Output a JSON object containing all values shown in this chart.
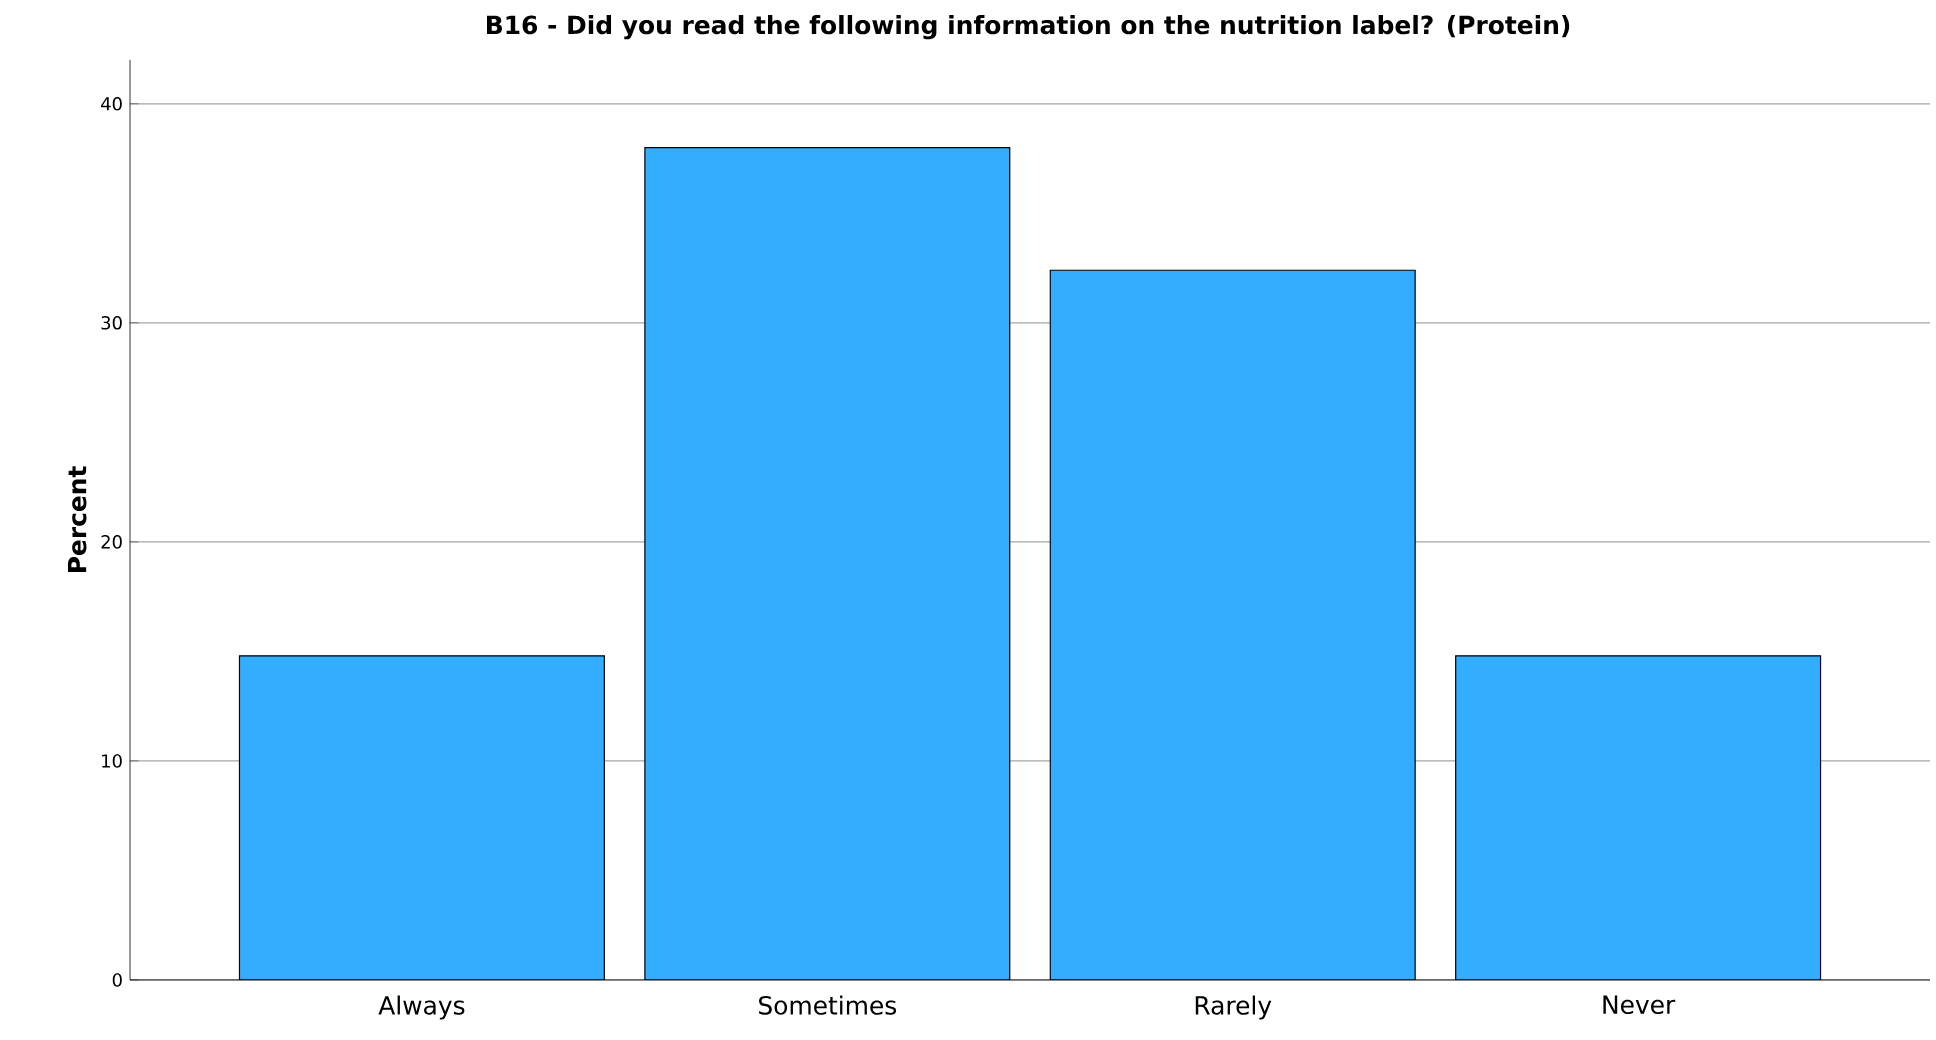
{
  "chart_data": {
    "type": "bar",
    "title": "B16 - Did you read the following information on the nutrition label? (Protein)",
    "ylabel": "Percent",
    "categories": [
      "Always",
      "Sometimes",
      "Rarely",
      "Never"
    ],
    "values": [
      14.8,
      38.0,
      32.4,
      14.8
    ],
    "color": "#33adff",
    "ylim": [
      0,
      42
    ],
    "yticks": [
      0,
      10,
      20,
      30,
      40
    ],
    "grid": "y"
  }
}
